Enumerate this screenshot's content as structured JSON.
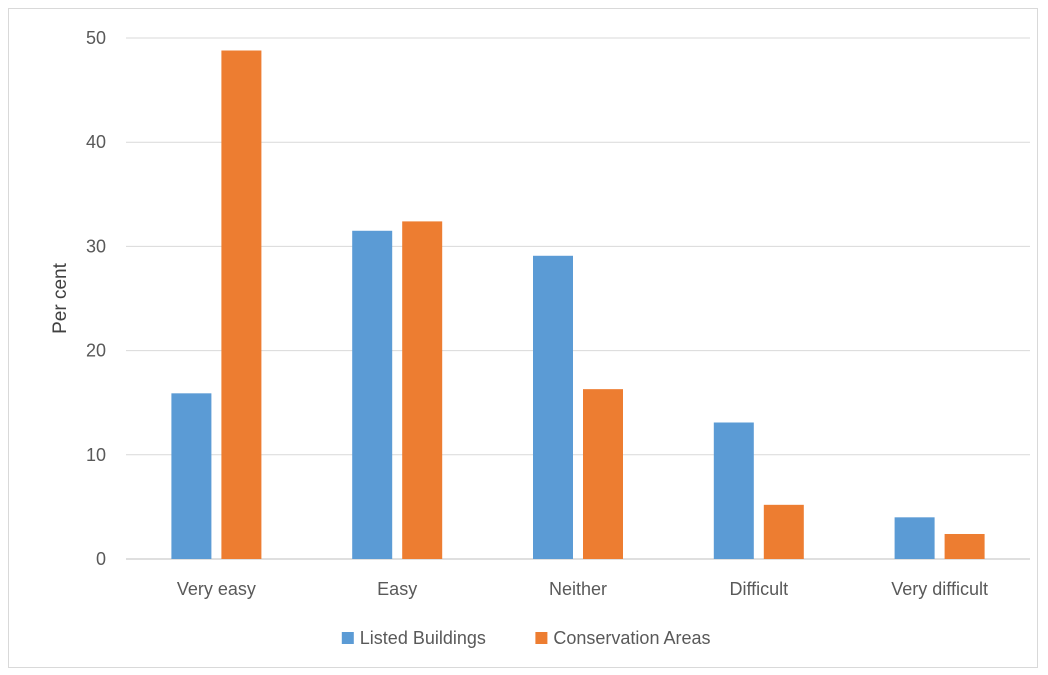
{
  "chart_data": {
    "type": "bar",
    "title": "",
    "xlabel": "",
    "ylabel": "Per cent",
    "ylim": [
      0,
      50
    ],
    "yticks": [
      0,
      10,
      20,
      30,
      40,
      50
    ],
    "grid": true,
    "legend_position": "bottom",
    "categories": [
      "Very easy",
      "Easy",
      "Neither",
      "Difficult",
      "Very difficult"
    ],
    "series": [
      {
        "name": "Listed Buildings",
        "color": "#5B9BD5",
        "values": [
          15.9,
          31.5,
          29.1,
          13.1,
          4.0
        ]
      },
      {
        "name": "Conservation Areas",
        "color": "#ED7D31",
        "values": [
          48.8,
          32.4,
          16.3,
          5.2,
          2.4
        ]
      }
    ]
  }
}
